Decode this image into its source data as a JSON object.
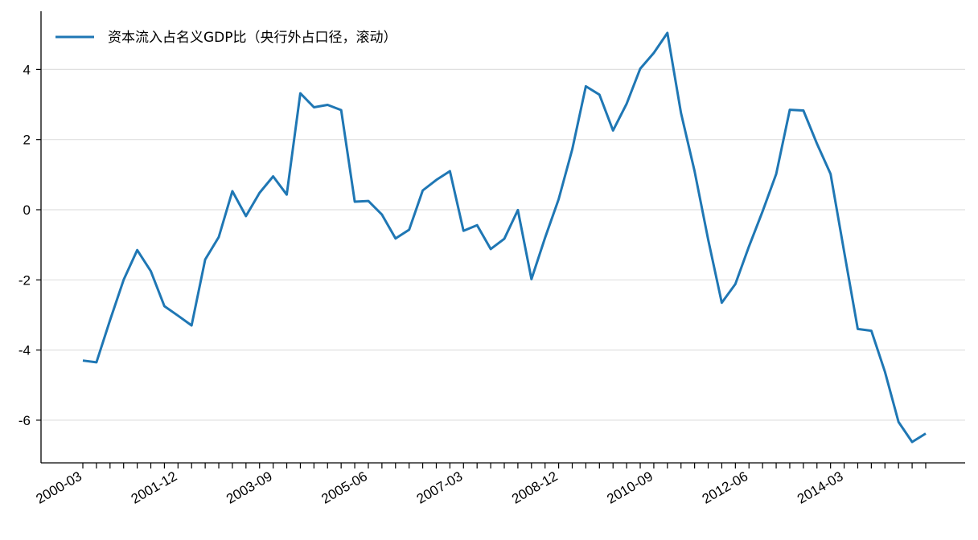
{
  "chart_data": {
    "type": "line",
    "title": "",
    "xlabel": "",
    "ylabel": "",
    "legend": {
      "position": "top-left",
      "label": "资本流入占名义GDP比（央行外占口径，滚动）"
    },
    "grid": {
      "y": true,
      "x": false
    },
    "ylim": [
      -7.3,
      5.6
    ],
    "yticks": [
      4,
      2,
      0,
      -2,
      -4,
      -6
    ],
    "x": [
      "2000-03",
      "2000-06",
      "2000-09",
      "2000-12",
      "2001-03",
      "2001-06",
      "2001-09",
      "2001-12",
      "2002-03",
      "2002-06",
      "2002-09",
      "2002-12",
      "2003-03",
      "2003-06",
      "2003-09",
      "2003-12",
      "2004-03",
      "2004-06",
      "2004-09",
      "2004-12",
      "2005-03",
      "2005-06",
      "2005-09",
      "2005-12",
      "2006-03",
      "2006-06",
      "2006-09",
      "2006-12",
      "2007-03",
      "2007-06",
      "2007-09",
      "2007-12",
      "2008-03",
      "2008-06",
      "2008-09",
      "2008-12",
      "2009-03",
      "2009-06",
      "2009-09",
      "2009-12",
      "2010-03",
      "2010-06",
      "2010-09",
      "2010-12",
      "2011-03",
      "2011-06",
      "2011-09",
      "2011-12",
      "2012-03",
      "2012-06",
      "2012-09",
      "2012-12",
      "2013-03",
      "2013-06",
      "2013-09",
      "2013-12",
      "2014-03",
      "2014-06",
      "2014-09",
      "2014-12",
      "2015-03",
      "2015-06",
      "2015-09"
    ],
    "xticklabels": [
      "2000-03",
      "2001-12",
      "2003-09",
      "2005-06",
      "2007-03",
      "2008-12",
      "2010-09",
      "2012-06",
      "2014-03"
    ],
    "series": [
      {
        "name": "资本流入占名义GDP比（央行外占口径，滚动）",
        "color": "#1f77b4",
        "values": [
          -4.3,
          -4.35,
          -3.15,
          -2.0,
          -1.15,
          -1.75,
          -2.75,
          -3.02,
          -3.3,
          -1.42,
          -0.78,
          0.53,
          -0.18,
          0.48,
          0.95,
          0.43,
          3.32,
          2.92,
          2.99,
          2.84,
          0.23,
          0.25,
          -0.14,
          -0.82,
          -0.57,
          0.55,
          0.85,
          1.1,
          -0.6,
          -0.44,
          -1.12,
          -0.83,
          -0.01,
          -1.98,
          -0.8,
          0.3,
          1.72,
          3.52,
          3.28,
          2.26,
          3.02,
          4.02,
          4.47,
          5.04,
          2.76,
          1.1,
          -0.85,
          -2.65,
          -2.12,
          -1.05,
          -0.05,
          1.02,
          2.85,
          2.83,
          1.88,
          1.02,
          -1.2,
          -3.4,
          -3.45,
          -4.62,
          -6.05,
          -6.62,
          -6.38
        ]
      }
    ]
  }
}
